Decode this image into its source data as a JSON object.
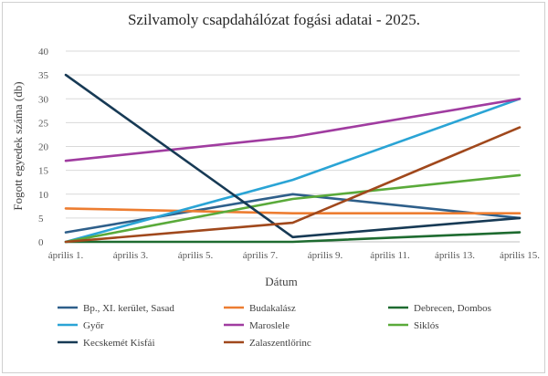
{
  "chart_data": {
    "type": "line",
    "title": "Szilvamoly csapdahálózat fogási adatai - 2025.",
    "xlabel": "Dátum",
    "ylabel": "Fogott egyedek száma (db)",
    "ylim": [
      0,
      40
    ],
    "yticks": [
      0,
      5,
      10,
      15,
      20,
      25,
      30,
      35,
      40
    ],
    "xlim": [
      "április 1.",
      "április 15."
    ],
    "xticks": [
      "április 1.",
      "április 3.",
      "április 5.",
      "április 7.",
      "április 9.",
      "április 11.",
      "április 13.",
      "április 15."
    ],
    "grid": "horizontal",
    "legend_position": "bottom",
    "series": [
      {
        "name": "Bp., XI. kerület, Sasad",
        "color": "#2e5f8a",
        "x": [
          "április 1.",
          "április 8.",
          "április 15."
        ],
        "values": [
          2,
          10,
          5
        ]
      },
      {
        "name": "Budakalász",
        "color": "#ed7d31",
        "x": [
          "április 1.",
          "április 8.",
          "április 15."
        ],
        "values": [
          7,
          6,
          6
        ]
      },
      {
        "name": "Debrecen, Dombos",
        "color": "#1e6b30",
        "x": [
          "április 1.",
          "április 8.",
          "április 15."
        ],
        "values": [
          0,
          0,
          2
        ]
      },
      {
        "name": "Győr",
        "color": "#2aa4d5",
        "x": [
          "április 1.",
          "április 8.",
          "április 15."
        ],
        "values": [
          0,
          13,
          30
        ]
      },
      {
        "name": "Maroslele",
        "color": "#a03ca0",
        "x": [
          "április 1.",
          "április 8.",
          "április 15."
        ],
        "values": [
          17,
          22,
          30
        ]
      },
      {
        "name": "Siklós",
        "color": "#5aaa3a",
        "x": [
          "április 1.",
          "április 8.",
          "április 15."
        ],
        "values": [
          0,
          9,
          14
        ]
      },
      {
        "name": "Kecskemét Kisfái",
        "color": "#173a55",
        "x": [
          "április 1.",
          "április 8.",
          "április 15."
        ],
        "values": [
          35,
          1,
          5
        ]
      },
      {
        "name": "Zalaszentlőrinc",
        "color": "#a0481c",
        "x": [
          "április 1.",
          "április 8.",
          "április 15."
        ],
        "values": [
          0,
          4,
          24
        ]
      }
    ]
  }
}
